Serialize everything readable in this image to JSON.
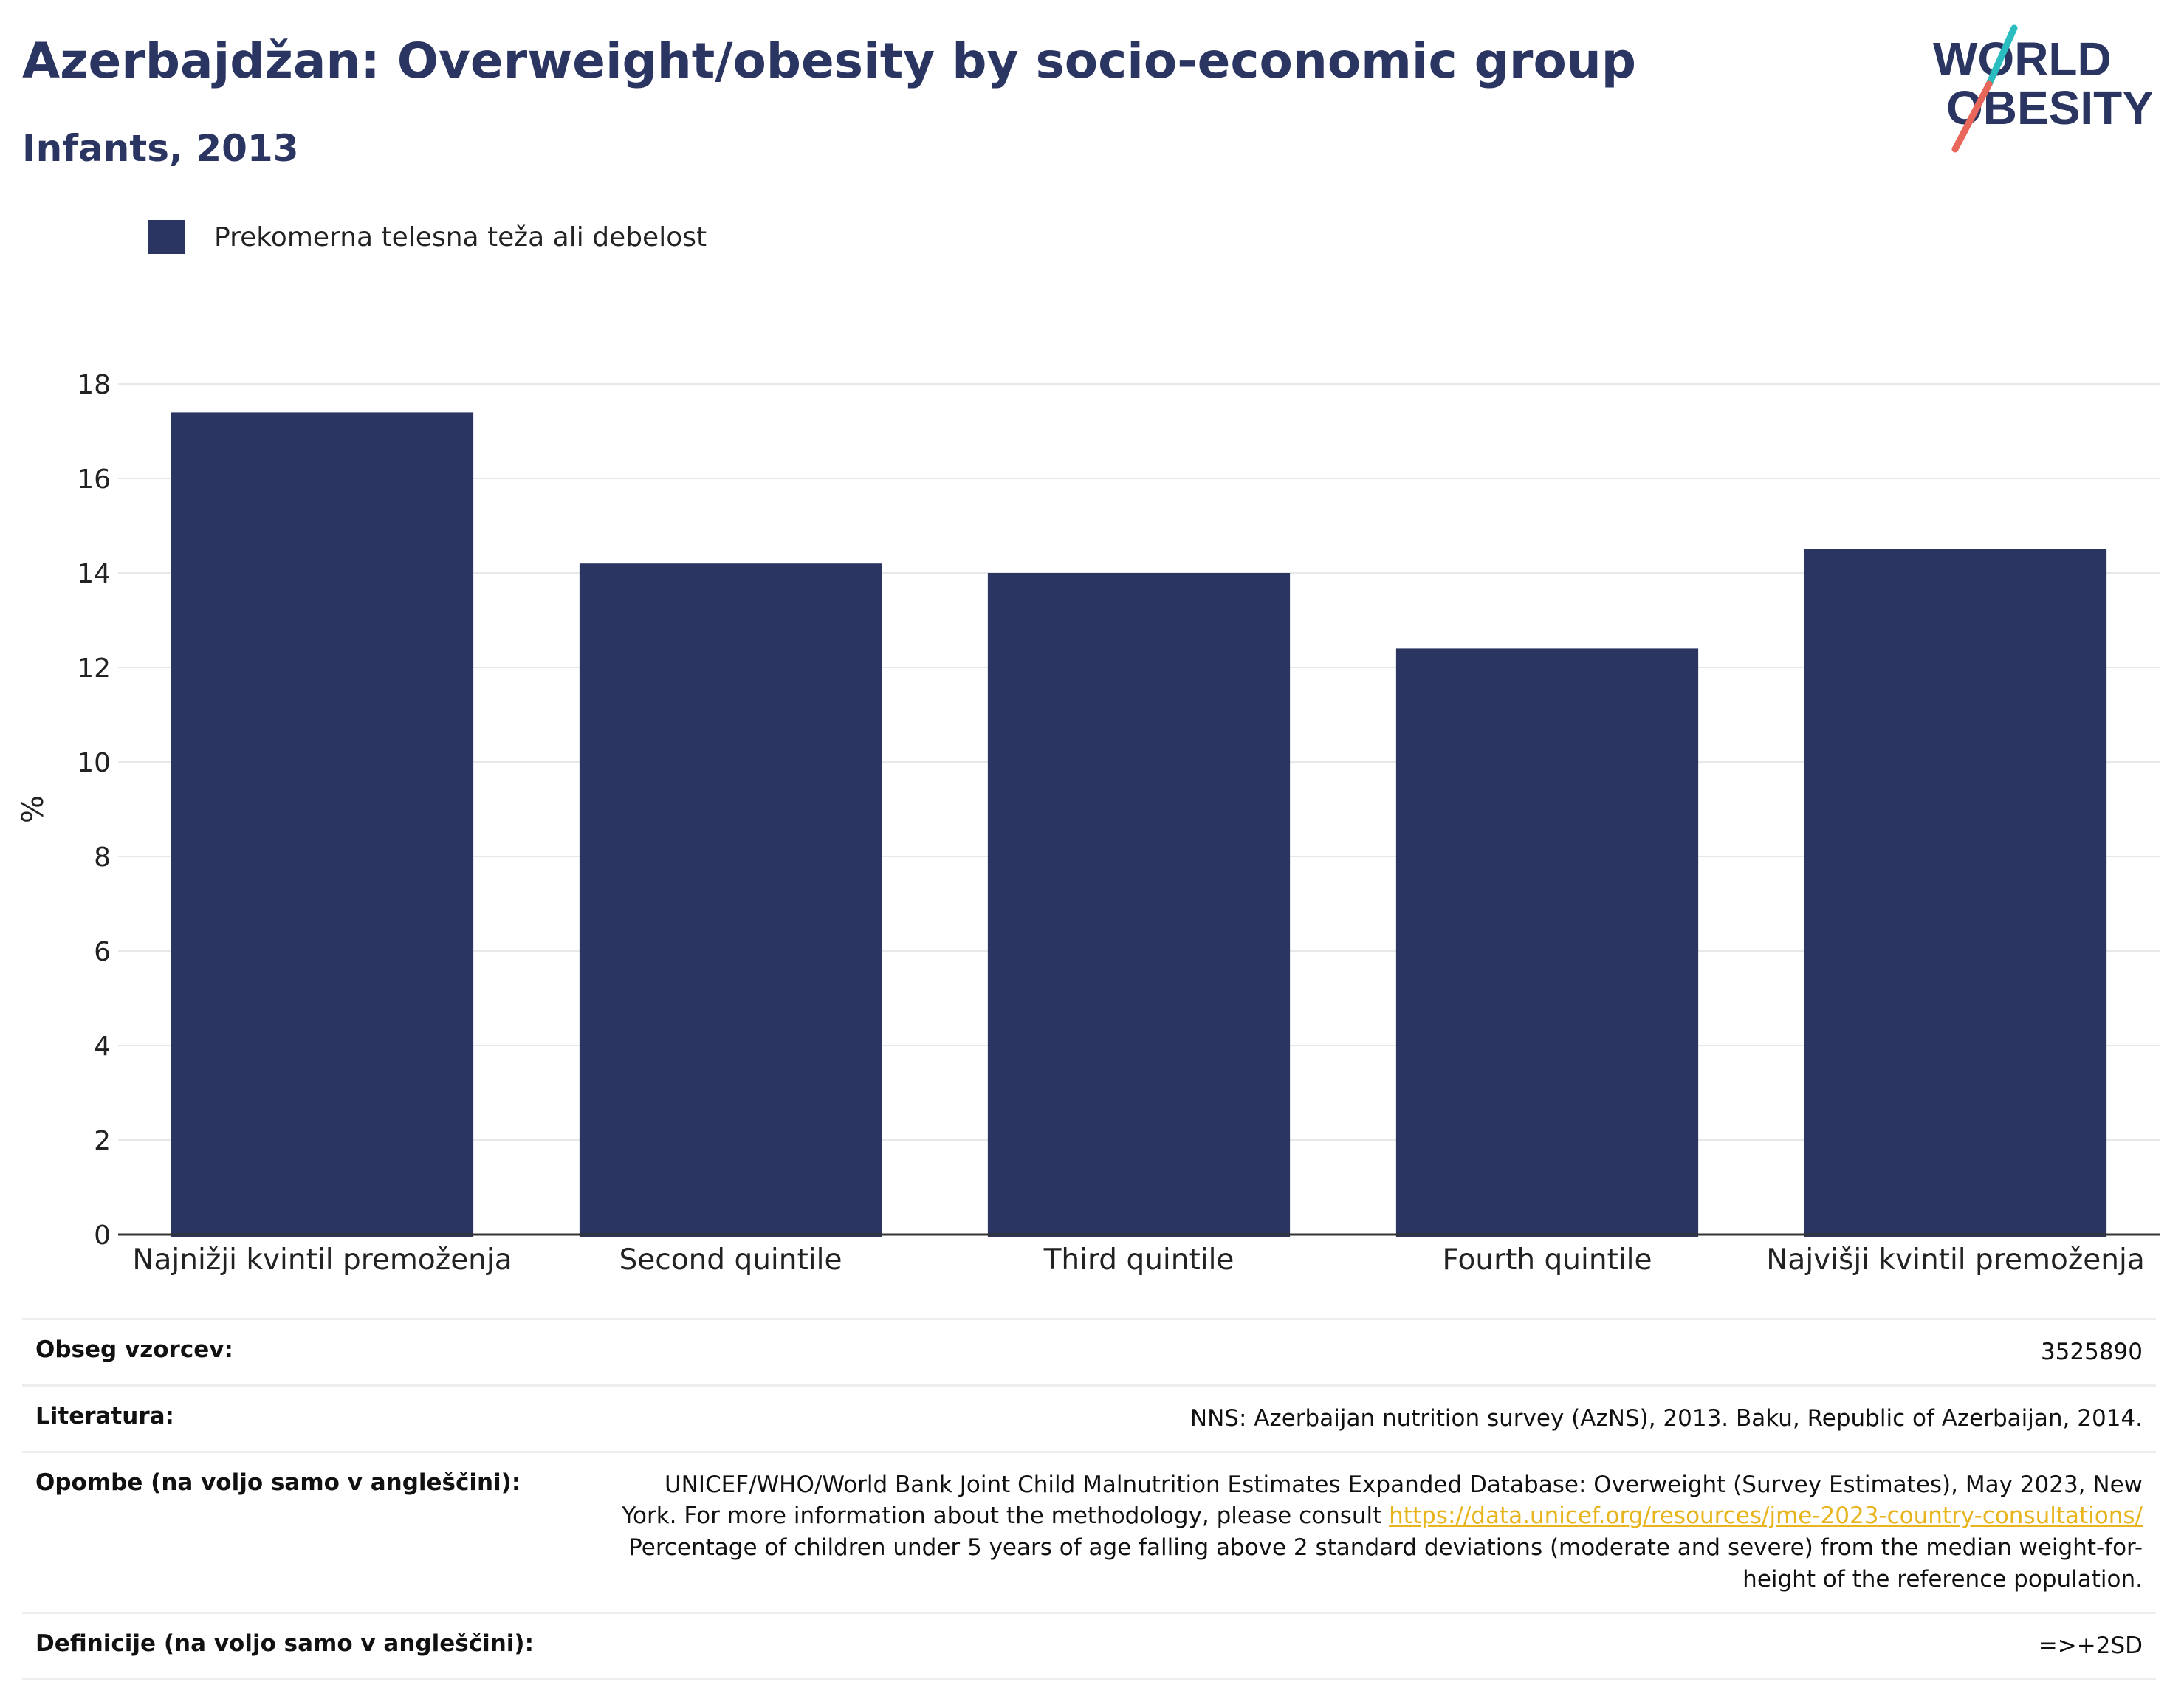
{
  "header": {
    "title": "Azerbajdžan: Overweight/obesity by socio-economic group",
    "subtitle": "Infants, 2013"
  },
  "logo": {
    "line1": "WORLD",
    "line2": "OBESITY",
    "icon": "world-obesity-logo",
    "text_color": "#2b3561",
    "slash_top_color": "#2bbcc0",
    "slash_bottom_color": "#e8665a"
  },
  "legend": {
    "label": "Prekomerna telesna teža ali debelost",
    "color": "#2b3561"
  },
  "chart_data": {
    "type": "bar",
    "categories": [
      "Najnižji kvintil premoženja",
      "Second quintile",
      "Third quintile",
      "Fourth quintile",
      "Najvišji kvintil premoženja"
    ],
    "series": [
      {
        "name": "Prekomerna telesna teža ali debelost",
        "values": [
          17.4,
          14.2,
          14.0,
          12.4,
          14.5
        ],
        "color": "#2b3561"
      }
    ],
    "ylabel": "%",
    "xlabel": "",
    "ylim": [
      0,
      18
    ],
    "yticks": [
      0,
      2,
      4,
      6,
      8,
      10,
      12,
      14,
      16,
      18
    ],
    "grid": true,
    "legend_position": "top-left"
  },
  "table": {
    "sample_label": "Obseg vzorcev:",
    "sample_value": "3525890",
    "literature_label": "Literatura:",
    "literature_value": "NNS: Azerbaijan nutrition survey (AzNS), 2013. Baku, Republic of Azerbaijan, 2014.",
    "notes_label": "Opombe (na voljo samo v angleščini):",
    "notes_line1": "UNICEF/WHO/World Bank Joint Child Malnutrition Estimates Expanded Database: Overweight (Survey Estimates), May 2023, New",
    "notes_line2": "York. For more information about the methodology, please consult",
    "notes_link": "https://data.unicef.org/resources/jme-2023-country-consultations/",
    "notes_line3": "Percentage of children under 5 years of age falling above 2 standard deviations (moderate and severe) from the median weight-for-",
    "notes_line4": "height of the reference population.",
    "definitions_label": "Definicije (na voljo samo v angleščini):",
    "definitions_value": "=>+2SD"
  }
}
